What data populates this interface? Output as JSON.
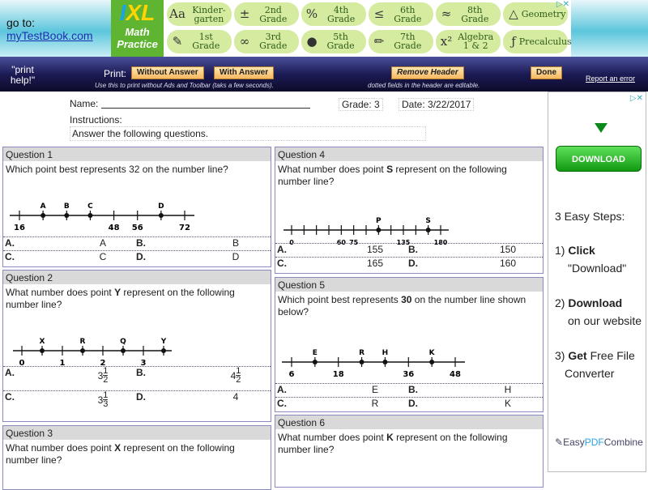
{
  "banner": {
    "goto_label": "go to:",
    "goto_link": "myTestBook.com",
    "ixl": {
      "logo": "IXL",
      "line1": "Math",
      "line2": "Practice",
      "items": [
        {
          "icon": "Aa",
          "label": "Kinder-garten"
        },
        {
          "icon": "±",
          "label": "2nd Grade"
        },
        {
          "icon": "%",
          "label": "4th Grade"
        },
        {
          "icon": "≤",
          "label": "6th Grade"
        },
        {
          "icon": "≈",
          "label": "8th Grade"
        },
        {
          "icon": "△",
          "label": "Geometry"
        },
        {
          "icon": "✎",
          "label": "1st Grade"
        },
        {
          "icon": "∞",
          "label": "3rd Grade"
        },
        {
          "icon": "●",
          "label": "5th Grade"
        },
        {
          "icon": "✏",
          "label": "7th Grade"
        },
        {
          "icon": "x²",
          "label": "Algebra 1 & 2"
        },
        {
          "icon": "ƒ",
          "label": "Precalculus"
        }
      ],
      "ad_mark": "▷✕"
    }
  },
  "toolbar": {
    "help": "\"print help!\"",
    "print_label": "Print:",
    "without_answer": "Without Answer",
    "with_answer": "With Answer",
    "hint1": "Use this to print without Ads and Toolbar (taks a few seconds).",
    "remove_header": "Remove Header",
    "hint2": "dotted fields in the header are editable.",
    "done": "Done",
    "report": "Report an error"
  },
  "header": {
    "name_label": "Name:",
    "grade": "Grade: 3",
    "date": "Date: 3/22/2017",
    "instructions_label": "Instructions:",
    "instructions": "Answer the following questions."
  },
  "questions": [
    {
      "title": "Question 1",
      "text": [
        "Which point best represents 32 on the number line?"
      ],
      "line": {
        "min": 16,
        "max": 72,
        "ticks": [
          {
            "v": 16,
            "label": "16"
          },
          {
            "v": 24
          },
          {
            "v": 32
          },
          {
            "v": 40
          },
          {
            "v": 48,
            "label": "48"
          },
          {
            "v": 56,
            "label": "56"
          },
          {
            "v": 64
          },
          {
            "v": 72,
            "label": "72"
          }
        ],
        "points": [
          {
            "v": 24,
            "label": "A"
          },
          {
            "v": 32,
            "label": "B"
          },
          {
            "v": 40,
            "label": "C"
          },
          {
            "v": 64,
            "label": "D"
          }
        ]
      },
      "answers": [
        {
          "k": "A.",
          "v": "A"
        },
        {
          "k": "B.",
          "v": "B"
        },
        {
          "k": "C.",
          "v": "C"
        },
        {
          "k": "D.",
          "v": "D"
        }
      ]
    },
    {
      "title": "Question 2",
      "text": [
        "What number does point ",
        "Y",
        " represent on the following number line?"
      ],
      "line": {
        "min": 0,
        "max": 3.5,
        "ticks": [
          {
            "v": 0,
            "label": "0"
          },
          {
            "v": 0.5
          },
          {
            "v": 1,
            "label": "1"
          },
          {
            "v": 1.5
          },
          {
            "v": 2,
            "label": "2"
          },
          {
            "v": 2.5
          },
          {
            "v": 3,
            "label": "3"
          },
          {
            "v": 3.5
          }
        ],
        "points": [
          {
            "v": 0.5,
            "label": "X"
          },
          {
            "v": 1.5,
            "label": "R"
          },
          {
            "v": 2.5,
            "label": "Q"
          },
          {
            "v": 3.5,
            "label": "Y"
          }
        ]
      },
      "answers": [
        {
          "k": "A.",
          "w": "3",
          "n": "1",
          "d": "2"
        },
        {
          "k": "B.",
          "w": "4",
          "n": "1",
          "d": "2"
        },
        {
          "k": "C.",
          "w": "3",
          "n": "1",
          "d": "3"
        },
        {
          "k": "D.",
          "v": "4"
        }
      ]
    },
    {
      "title": "Question 3",
      "text": [
        "What number does point ",
        "X",
        " represent on the following number line?"
      ]
    },
    {
      "title": "Question 4",
      "text": [
        "What number does point ",
        "S",
        " represent on the following number line?"
      ],
      "line": {
        "min": 0,
        "max": 180,
        "ticks": [
          {
            "v": 0,
            "label": "0"
          },
          {
            "v": 15
          },
          {
            "v": 30
          },
          {
            "v": 45
          },
          {
            "v": 60,
            "label": "60"
          },
          {
            "v": 75,
            "label": "75"
          },
          {
            "v": 90
          },
          {
            "v": 105
          },
          {
            "v": 120
          },
          {
            "v": 135,
            "label": "135"
          },
          {
            "v": 150
          },
          {
            "v": 165
          },
          {
            "v": 180,
            "label": "180"
          }
        ],
        "points": [
          {
            "v": 105,
            "label": "P"
          },
          {
            "v": 165,
            "label": "S"
          }
        ]
      },
      "answers": [
        {
          "k": "A.",
          "v": "155"
        },
        {
          "k": "B.",
          "v": "150"
        },
        {
          "k": "C.",
          "v": "165"
        },
        {
          "k": "D.",
          "v": "160"
        }
      ]
    },
    {
      "title": "Question 5",
      "text": [
        "Which point best represents ",
        "30",
        " on the number line shown below?"
      ],
      "line": {
        "min": 6,
        "max": 48,
        "ticks": [
          {
            "v": 6,
            "label": "6"
          },
          {
            "v": 12
          },
          {
            "v": 18,
            "label": "18"
          },
          {
            "v": 24
          },
          {
            "v": 30
          },
          {
            "v": 36,
            "label": "36"
          },
          {
            "v": 42
          },
          {
            "v": 48,
            "label": "48"
          }
        ],
        "points": [
          {
            "v": 12,
            "label": "E"
          },
          {
            "v": 24,
            "label": "R"
          },
          {
            "v": 30,
            "label": "H"
          },
          {
            "v": 42,
            "label": "K"
          }
        ]
      },
      "answers": [
        {
          "k": "A.",
          "v": "E"
        },
        {
          "k": "B.",
          "v": "H"
        },
        {
          "k": "C.",
          "v": "R"
        },
        {
          "k": "D.",
          "v": "K"
        }
      ]
    },
    {
      "title": "Question 6",
      "text": [
        "What number does point ",
        "K",
        " represent on the following number line?"
      ]
    }
  ],
  "ad": {
    "mark": "▷✕",
    "download": "DOWNLOAD",
    "steps_title": "3 Easy Steps:",
    "s1a": "1) ",
    "s1b": "Click",
    "s1c": "\"Download\"",
    "s2a": "2) ",
    "s2b": "Download",
    "s2c": "on our website",
    "s3a": "3) ",
    "s3b": "Get",
    "s3c": " Free File",
    "s3d": "Converter",
    "brand1": "Easy",
    "brand2": "PDF",
    "brand3": "Combine"
  }
}
